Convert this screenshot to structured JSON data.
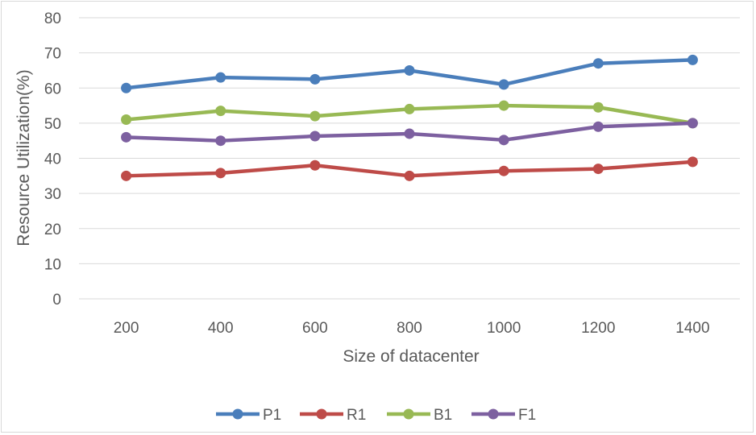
{
  "chart_data": {
    "type": "line",
    "title": "",
    "xlabel": "Size of datacenter",
    "ylabel": "Resource Utilization(%)",
    "categories": [
      "200",
      "400",
      "600",
      "800",
      "1000",
      "1200",
      "1400"
    ],
    "yticks": [
      "0",
      "10",
      "20",
      "30",
      "40",
      "50",
      "60",
      "70",
      "80"
    ],
    "ylim": [
      0,
      80
    ],
    "grid": true,
    "legend_position": "bottom",
    "series": [
      {
        "name": "P1",
        "color": "#4a7ebb",
        "values": [
          60,
          63,
          62.5,
          65,
          61,
          67,
          68
        ]
      },
      {
        "name": "R1",
        "color": "#be4b48",
        "values": [
          35,
          35.8,
          38,
          35,
          36.4,
          37,
          39
        ]
      },
      {
        "name": "B1",
        "color": "#98b954",
        "values": [
          51,
          53.5,
          52,
          54,
          55,
          54.5,
          50
        ]
      },
      {
        "name": "F1",
        "color": "#7d60a0",
        "values": [
          46,
          45,
          46.3,
          47,
          45.2,
          49,
          50
        ]
      }
    ]
  }
}
